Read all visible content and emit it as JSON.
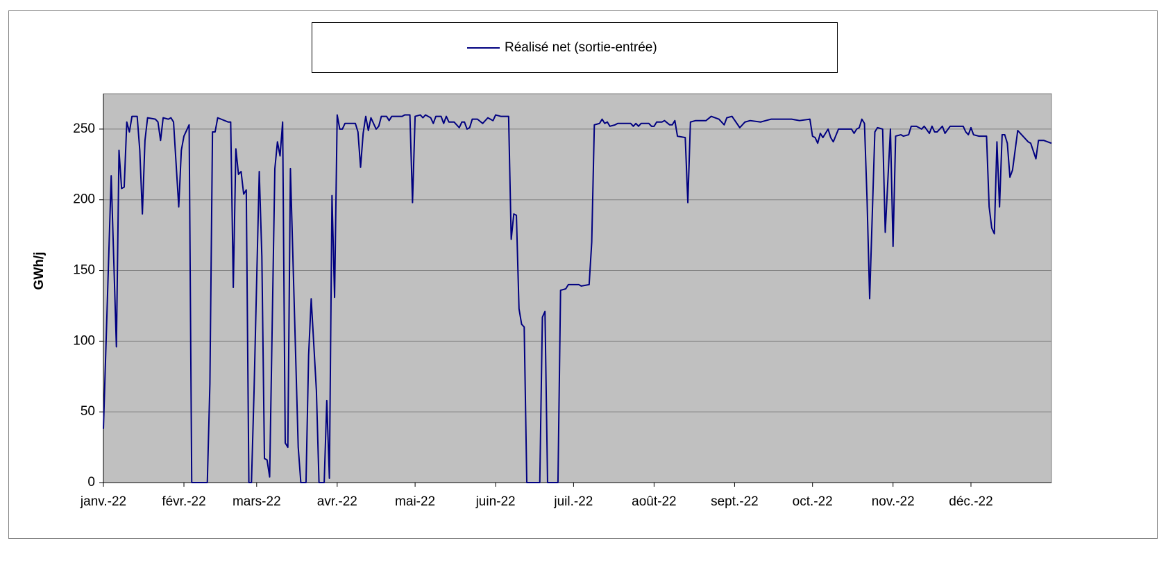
{
  "chart_data": {
    "type": "line",
    "y_label": "GWh/j",
    "xlim": [
      0,
      365
    ],
    "xticks": [
      {
        "value": 0,
        "label": "janv.-22"
      },
      {
        "value": 31,
        "label": "févr.-22"
      },
      {
        "value": 59,
        "label": "mars-22"
      },
      {
        "value": 90,
        "label": "avr.-22"
      },
      {
        "value": 120,
        "label": "mai-22"
      },
      {
        "value": 151,
        "label": "juin-22"
      },
      {
        "value": 181,
        "label": "juil.-22"
      },
      {
        "value": 212,
        "label": "août-22"
      },
      {
        "value": 243,
        "label": "sept.-22"
      },
      {
        "value": 273,
        "label": "oct.-22"
      },
      {
        "value": 304,
        "label": "nov.-22"
      },
      {
        "value": 334,
        "label": "déc.-22"
      }
    ],
    "ylim": [
      0,
      275
    ],
    "yticks": [
      0,
      50,
      100,
      150,
      200,
      250
    ],
    "grid": true,
    "legend": "top",
    "series": [
      {
        "name": "Réalisé net (sortie-entrée)",
        "color": "#000080",
        "x": [
          0,
          3,
          5,
          6,
          7,
          8,
          9,
          10,
          11,
          13,
          14,
          15,
          16,
          17,
          20,
          21,
          22,
          23,
          25,
          26,
          27,
          29,
          30,
          31,
          33,
          34,
          40,
          41,
          42,
          43,
          44,
          48,
          49,
          50,
          51,
          52,
          53,
          54,
          55,
          56,
          57,
          58,
          60,
          61,
          62,
          63,
          64,
          66,
          67,
          68,
          69,
          70,
          71,
          72,
          75,
          76,
          78,
          79,
          80,
          82,
          83,
          85,
          86,
          87,
          88,
          89,
          90,
          91,
          92,
          93,
          97,
          98,
          99,
          100,
          101,
          102,
          103,
          105,
          106,
          107,
          109,
          110,
          111,
          115,
          116,
          118,
          119,
          120,
          122,
          123,
          124,
          126,
          127,
          128,
          130,
          131,
          132,
          133,
          135,
          137,
          138,
          139,
          140,
          141,
          142,
          144,
          146,
          148,
          150,
          151,
          153,
          156,
          157,
          158,
          159,
          160,
          161,
          162,
          163,
          168,
          169,
          170,
          171,
          175,
          176,
          178,
          179,
          183,
          184,
          187,
          188,
          189,
          191,
          192,
          193,
          194,
          195,
          197,
          198,
          203,
          204,
          205,
          206,
          207,
          210,
          211,
          212,
          213,
          215,
          216,
          218,
          219,
          220,
          221,
          224,
          225,
          226,
          228,
          232,
          234,
          237,
          239,
          240,
          242,
          245,
          247,
          249,
          253,
          255,
          257,
          265,
          268,
          272,
          273,
          274,
          275,
          276,
          277,
          279,
          280,
          281,
          283,
          288,
          289,
          290,
          291,
          292,
          293,
          294,
          295,
          297,
          298,
          300,
          301,
          303,
          304,
          305,
          307,
          308,
          310,
          311,
          313,
          315,
          316,
          318,
          319,
          320,
          321,
          323,
          324,
          326,
          331,
          332,
          333,
          334,
          335,
          337,
          340,
          341,
          342,
          343,
          344,
          345,
          346,
          347,
          348,
          349,
          350,
          352,
          354,
          356,
          357,
          359,
          360,
          362,
          365
        ],
        "values": [
          38,
          217,
          96,
          235,
          208,
          209,
          255,
          248,
          259,
          259,
          235,
          190,
          242,
          258,
          257,
          255,
          242,
          258,
          257,
          258,
          255,
          195,
          235,
          245,
          253,
          0,
          0,
          70,
          248,
          248,
          258,
          255,
          255,
          138,
          236,
          218,
          220,
          204,
          207,
          0,
          0,
          65,
          220,
          160,
          17,
          16,
          4,
          222,
          241,
          231,
          255,
          28,
          25,
          222,
          25,
          0,
          0,
          90,
          130,
          65,
          0,
          0,
          58,
          3,
          203,
          131,
          260,
          250,
          250,
          254,
          254,
          248,
          223,
          247,
          259,
          249,
          258,
          250,
          252,
          259,
          259,
          256,
          259,
          259,
          260,
          260,
          198,
          259,
          260,
          258,
          260,
          258,
          254,
          259,
          259,
          254,
          259,
          255,
          255,
          251,
          255,
          255,
          250,
          251,
          257,
          257,
          254,
          258,
          256,
          260,
          259,
          259,
          172,
          190,
          189,
          123,
          112,
          110,
          0,
          0,
          117,
          121,
          0,
          0,
          136,
          137,
          140,
          140,
          139,
          140,
          170,
          253,
          254,
          257,
          254,
          255,
          252,
          253,
          254,
          254,
          252,
          254,
          252,
          254,
          254,
          252,
          252,
          255,
          255,
          256,
          253,
          253,
          256,
          245,
          244,
          198,
          255,
          256,
          256,
          259,
          257,
          253,
          258,
          259,
          251,
          255,
          256,
          255,
          256,
          257,
          257,
          256,
          257,
          245,
          244,
          240,
          247,
          244,
          250,
          244,
          241,
          250,
          250,
          247,
          250,
          251,
          257,
          254,
          200,
          130,
          248,
          251,
          250,
          177,
          250,
          167,
          245,
          246,
          245,
          246,
          252,
          252,
          250,
          252,
          247,
          252,
          248,
          248,
          252,
          247,
          252,
          252,
          248,
          246,
          251,
          246,
          245,
          245,
          195,
          180,
          176,
          241,
          195,
          246,
          246,
          240,
          216,
          221,
          249,
          245,
          241,
          240,
          229,
          242,
          242,
          240
        ]
      }
    ]
  }
}
